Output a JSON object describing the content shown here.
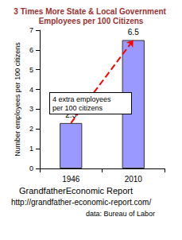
{
  "chart_data": {
    "type": "bar",
    "title": "3 Times More State & Local Government Employees per 100 Citizens",
    "categories": [
      "1946",
      "2010"
    ],
    "values": [
      2.3,
      6.5
    ],
    "color": "#9999ff",
    "ylabel": "Number employees per 100 citizens",
    "ylim": [
      0,
      7
    ],
    "yticks": [
      0,
      1,
      2,
      3,
      4,
      5,
      6,
      7
    ],
    "grid": false,
    "data_labels": true,
    "annotation": "4 extra employees per 100 citizens",
    "footer": [
      "GrandfatherEconomic Report",
      "http://grandfather-economic-report.com/",
      "data: Bureau of Labor"
    ]
  }
}
